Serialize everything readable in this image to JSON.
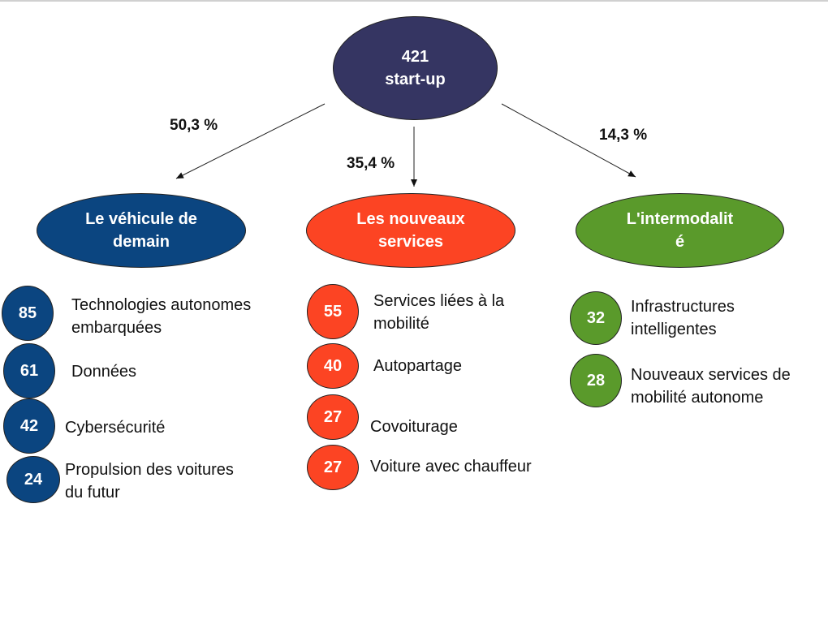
{
  "root": {
    "count": "421",
    "label": "start-up",
    "color": "#353562"
  },
  "branches": [
    {
      "percent": "50,3 %",
      "title_line1": "Le véhicule de",
      "title_line2": "demain",
      "color": "#0b4580",
      "items": [
        {
          "count": "85",
          "line1": "Technologies autonomes",
          "line2": "embarquées"
        },
        {
          "count": "61",
          "line1": "Données",
          "line2": ""
        },
        {
          "count": "42",
          "line1": "Cybersécurité",
          "line2": ""
        },
        {
          "count": "24",
          "line1": "Propulsion des voitures",
          "line2": "du futur"
        }
      ]
    },
    {
      "percent": "35,4 %",
      "title_line1": "Les nouveaux",
      "title_line2": "services",
      "color": "#fc4423",
      "items": [
        {
          "count": "55",
          "line1": "Services liées à la",
          "line2": "mobilité"
        },
        {
          "count": "40",
          "line1": "Autopartage",
          "line2": ""
        },
        {
          "count": "27",
          "line1": "Covoiturage",
          "line2": ""
        },
        {
          "count": "27",
          "line1": "Voiture avec chauffeur",
          "line2": ""
        }
      ]
    },
    {
      "percent": "14,3 %",
      "title_line1": "L'intermodalit",
      "title_line2": "é",
      "color": "#5a9a2b",
      "items": [
        {
          "count": "32",
          "line1": "Infrastructures",
          "line2": "intelligentes"
        },
        {
          "count": "28",
          "line1": "Nouveaux services de",
          "line2": "mobilité autonome"
        }
      ]
    }
  ]
}
